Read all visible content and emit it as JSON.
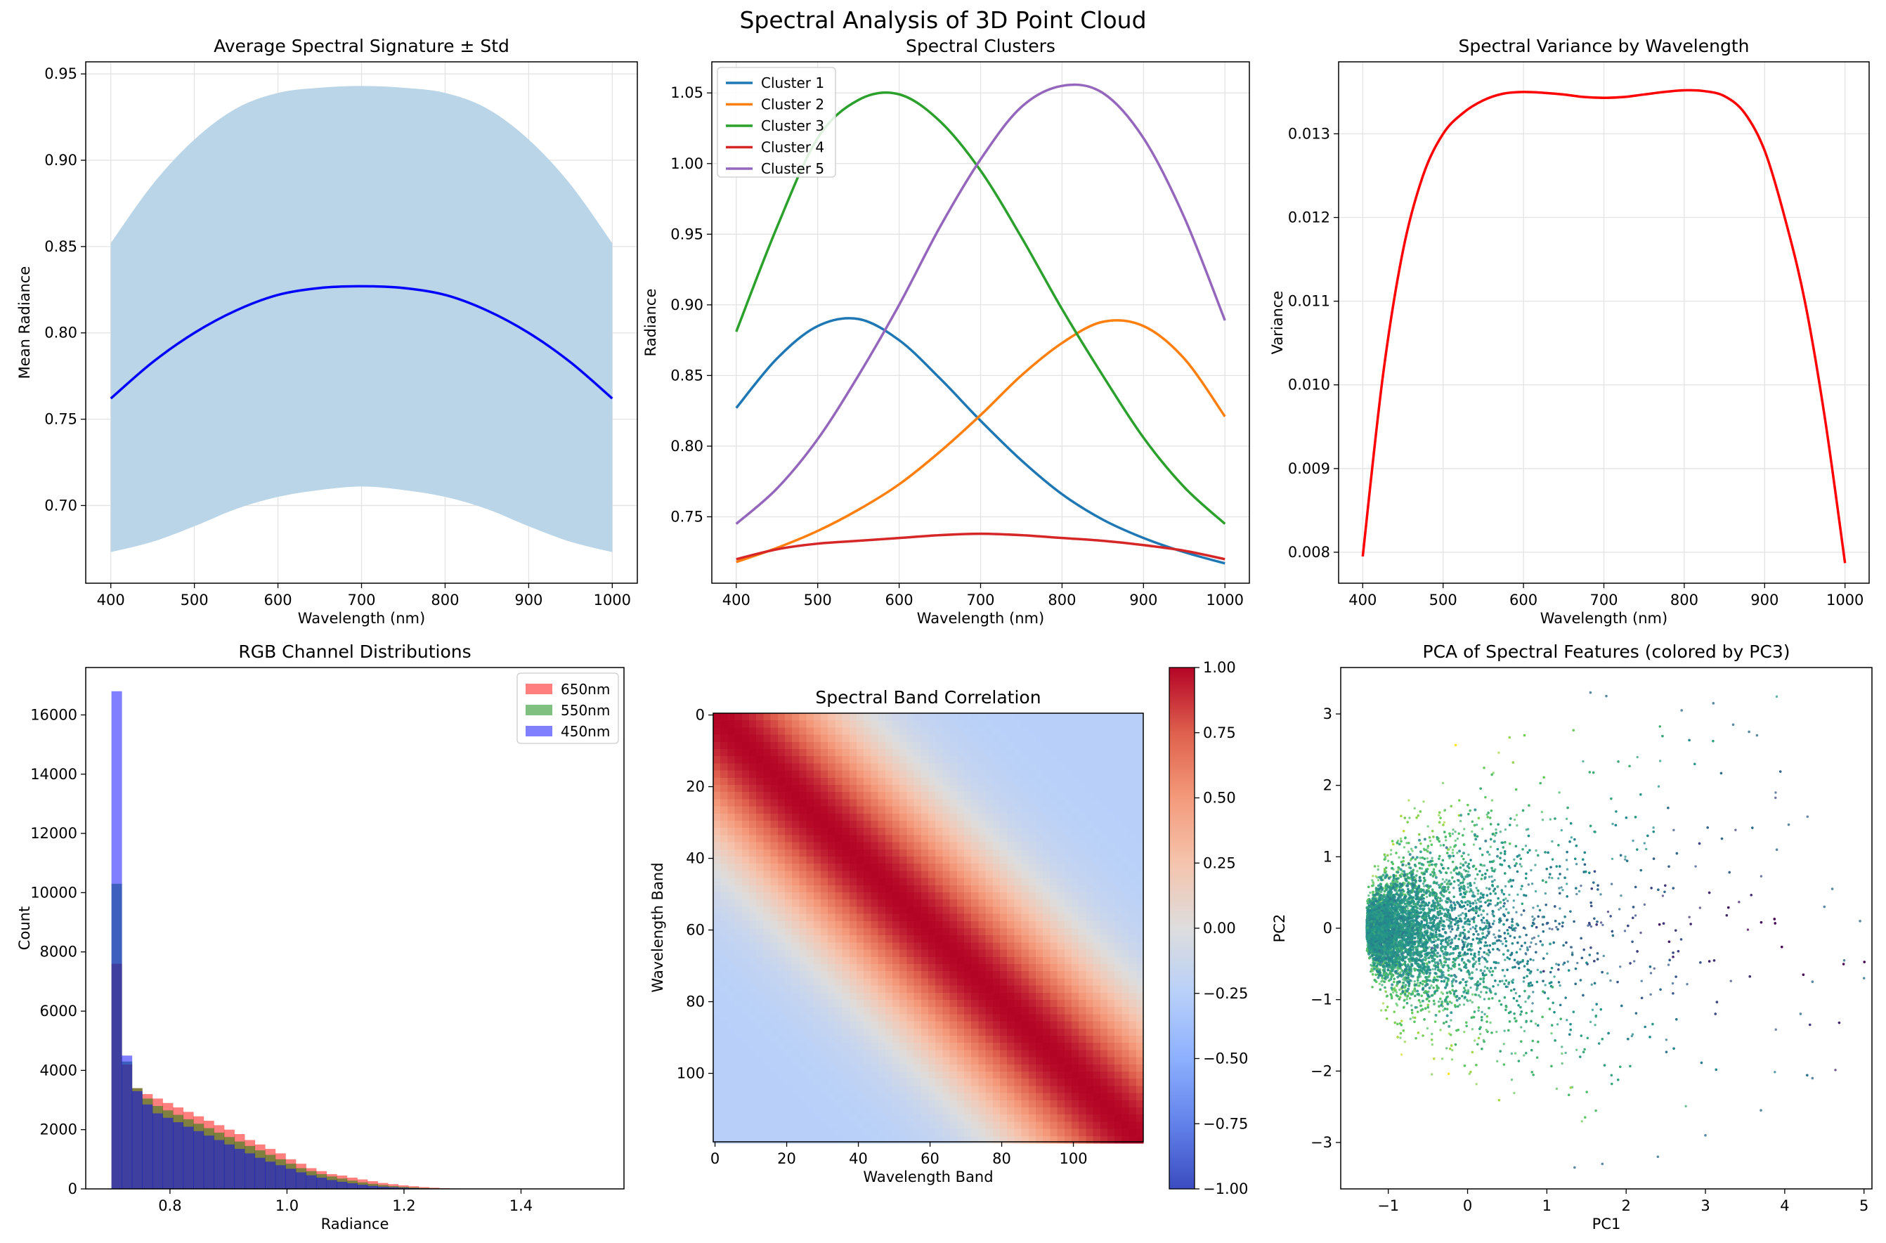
{
  "figure": {
    "title": "Spectral Analysis of 3D Point Cloud"
  },
  "chart_data": [
    {
      "type": "area",
      "id": "avg",
      "title": "Average Spectral Signature ± Std",
      "xlabel": "Wavelength (nm)",
      "ylabel": "Mean Radiance",
      "xlim": [
        370,
        1030
      ],
      "ylim": [
        0.655,
        0.957
      ],
      "xticks": [
        400,
        500,
        600,
        700,
        800,
        900,
        1000
      ],
      "yticks": [
        0.7,
        0.75,
        0.8,
        0.85,
        0.9,
        0.95
      ],
      "ytick_labels": [
        "0.70",
        "0.75",
        "0.80",
        "0.85",
        "0.90",
        "0.95"
      ],
      "grid": true,
      "x": [
        400,
        450,
        500,
        550,
        600,
        650,
        700,
        750,
        800,
        850,
        900,
        950,
        1000
      ],
      "mean": [
        0.762,
        0.783,
        0.8,
        0.813,
        0.822,
        0.826,
        0.827,
        0.826,
        0.822,
        0.813,
        0.8,
        0.783,
        0.762
      ],
      "upper": [
        0.852,
        0.886,
        0.912,
        0.93,
        0.939,
        0.942,
        0.943,
        0.942,
        0.939,
        0.93,
        0.912,
        0.886,
        0.852
      ],
      "lower": [
        0.673,
        0.679,
        0.688,
        0.698,
        0.705,
        0.709,
        0.711,
        0.709,
        0.705,
        0.698,
        0.688,
        0.679,
        0.673
      ],
      "colors": {
        "line": "#0000ff",
        "band": "#b9d5e7"
      }
    },
    {
      "type": "line",
      "id": "clusters",
      "title": "Spectral Clusters",
      "xlabel": "Wavelength (nm)",
      "ylabel": "Radiance",
      "xlim": [
        370,
        1030
      ],
      "ylim": [
        0.703,
        1.072
      ],
      "xticks": [
        400,
        500,
        600,
        700,
        800,
        900,
        1000
      ],
      "yticks": [
        0.75,
        0.8,
        0.85,
        0.9,
        0.95,
        1.0,
        1.05
      ],
      "ytick_labels": [
        "0.75",
        "0.80",
        "0.85",
        "0.90",
        "0.95",
        "1.00",
        "1.05"
      ],
      "grid": true,
      "legend": "top-left",
      "x": [
        400,
        450,
        500,
        550,
        600,
        650,
        700,
        750,
        800,
        850,
        900,
        950,
        1000
      ],
      "series": [
        {
          "name": "Cluster 1",
          "color": "#1f77b4",
          "values": [
            0.827,
            0.862,
            0.885,
            0.89,
            0.875,
            0.848,
            0.818,
            0.79,
            0.766,
            0.748,
            0.735,
            0.725,
            0.717
          ]
        },
        {
          "name": "Cluster 2",
          "color": "#ff7f0e",
          "values": [
            0.718,
            0.728,
            0.74,
            0.755,
            0.773,
            0.796,
            0.822,
            0.85,
            0.873,
            0.888,
            0.885,
            0.862,
            0.821
          ]
        },
        {
          "name": "Cluster 3",
          "color": "#2ca02c",
          "values": [
            0.881,
            0.955,
            1.018,
            1.045,
            1.049,
            1.03,
            0.995,
            0.948,
            0.897,
            0.85,
            0.806,
            0.771,
            0.745
          ]
        },
        {
          "name": "Cluster 4",
          "color": "#d62728",
          "values": [
            0.72,
            0.727,
            0.731,
            0.733,
            0.735,
            0.737,
            0.738,
            0.737,
            0.735,
            0.733,
            0.73,
            0.726,
            0.72
          ]
        },
        {
          "name": "Cluster 5",
          "color": "#9467bd",
          "values": [
            0.745,
            0.77,
            0.805,
            0.85,
            0.9,
            0.955,
            1.003,
            1.04,
            1.055,
            1.05,
            1.018,
            0.962,
            0.889
          ]
        }
      ]
    },
    {
      "type": "line",
      "id": "variance",
      "title": "Spectral Variance by Wavelength",
      "xlabel": "Wavelength (nm)",
      "ylabel": "Variance",
      "xlim": [
        370,
        1030
      ],
      "ylim": [
        0.00763,
        0.01386
      ],
      "xticks": [
        400,
        500,
        600,
        700,
        800,
        900,
        1000
      ],
      "yticks": [
        0.008,
        0.009,
        0.01,
        0.011,
        0.012,
        0.013
      ],
      "ytick_labels": [
        "0.008",
        "0.009",
        "0.010",
        "0.011",
        "0.012",
        "0.013"
      ],
      "grid": true,
      "x": [
        400,
        425,
        450,
        475,
        500,
        525,
        550,
        575,
        600,
        625,
        650,
        675,
        700,
        725,
        750,
        775,
        800,
        825,
        850,
        875,
        900,
        925,
        950,
        975,
        1000
      ],
      "series": [
        {
          "name": "",
          "color": "#ff0000",
          "values": [
            0.00795,
            0.0101,
            0.0116,
            0.0125,
            0.013,
            0.01325,
            0.0134,
            0.01348,
            0.0135,
            0.01349,
            0.01347,
            0.01344,
            0.01343,
            0.01344,
            0.01347,
            0.0135,
            0.01352,
            0.01351,
            0.01345,
            0.01325,
            0.0128,
            0.012,
            0.011,
            0.0096,
            0.00787
          ]
        }
      ]
    },
    {
      "type": "bar",
      "id": "hist",
      "title": "RGB Channel Distributions",
      "xlabel": "Radiance",
      "ylabel": "Count",
      "xlim": [
        0.656,
        1.576
      ],
      "ylim": [
        0,
        17600
      ],
      "xticks": [
        0.8,
        1.0,
        1.2,
        1.4
      ],
      "xtick_labels": [
        "0.8",
        "1.0",
        "1.2",
        "1.4"
      ],
      "yticks": [
        0,
        2000,
        4000,
        6000,
        8000,
        10000,
        12000,
        14000,
        16000
      ],
      "grid": false,
      "legend": "top-right",
      "bin_start": 0.7,
      "bin_width": 0.0175,
      "series": [
        {
          "name": "650nm",
          "color": "#ff0000",
          "values": [
            7600,
            4200,
            3400,
            3200,
            3050,
            2900,
            2750,
            2600,
            2450,
            2300,
            2150,
            2000,
            1850,
            1650,
            1500,
            1350,
            1200,
            1000,
            850,
            700,
            600,
            500,
            450,
            380,
            320,
            260,
            200,
            160,
            120,
            90,
            60,
            40,
            25,
            15,
            10,
            6,
            4,
            2,
            1,
            0,
            0,
            0,
            0,
            0,
            0,
            0,
            0,
            0,
            0,
            0
          ]
        },
        {
          "name": "550nm",
          "color": "#008000",
          "values": [
            10300,
            4300,
            3400,
            3050,
            2800,
            2650,
            2500,
            2350,
            2200,
            2050,
            1900,
            1750,
            1600,
            1450,
            1300,
            1150,
            1000,
            850,
            700,
            600,
            500,
            420,
            350,
            280,
            220,
            170,
            130,
            95,
            70,
            50,
            30,
            20,
            12,
            7,
            4,
            2,
            1,
            1,
            0,
            0,
            0,
            0,
            0,
            0,
            0,
            0,
            0,
            0,
            0,
            0
          ]
        },
        {
          "name": "450nm",
          "color": "#0000ff",
          "values": [
            16800,
            4500,
            3300,
            2850,
            2550,
            2400,
            2250,
            2100,
            1950,
            1800,
            1650,
            1500,
            1350,
            1200,
            1050,
            920,
            800,
            680,
            560,
            460,
            380,
            300,
            240,
            190,
            140,
            100,
            75,
            55,
            38,
            25,
            15,
            9,
            5,
            3,
            2,
            1,
            1,
            0,
            0,
            0,
            0,
            0,
            0,
            0,
            0,
            0,
            0,
            0,
            0,
            0
          ]
        }
      ]
    },
    {
      "type": "heatmap",
      "id": "corr",
      "title": "Spectral Band Correlation",
      "xlabel": "Wavelength Band",
      "ylabel": "Wavelength Band",
      "n": 120,
      "xticks": [
        0,
        20,
        40,
        60,
        80,
        100
      ],
      "yticks": [
        0,
        20,
        40,
        60,
        80,
        100
      ],
      "colorbar_ticks": [
        1.0,
        0.75,
        0.5,
        0.25,
        0.0,
        -0.25,
        -0.5,
        -0.75,
        -1.0
      ],
      "colorbar_labels": [
        "1.00",
        "0.75",
        "0.50",
        "0.25",
        "0.00",
        "−0.25",
        "−0.50",
        "−0.75",
        "−1.00"
      ],
      "vmin": -1,
      "vmax": 1,
      "colormap": "coolwarm"
    },
    {
      "type": "scatter",
      "id": "pca",
      "title": "PCA of Spectral Features (colored by PC3)",
      "xlabel": "PC1",
      "ylabel": "PC2",
      "xlim": [
        -1.6,
        5.1
      ],
      "ylim": [
        -3.65,
        3.65
      ],
      "xticks": [
        -1,
        0,
        1,
        2,
        3,
        4,
        5
      ],
      "xtick_labels": [
        "−1",
        "0",
        "1",
        "2",
        "3",
        "4",
        "5"
      ],
      "yticks": [
        -3,
        -2,
        -1,
        0,
        1,
        2,
        3
      ],
      "ytick_labels": [
        "−3",
        "−2",
        "−1",
        "0",
        "1",
        "2",
        "3"
      ],
      "grid": false,
      "colormap": "viridis",
      "apex": [
        -1.27,
        0
      ],
      "sample_points": [
        [
          4.6,
          0.55
        ],
        [
          4.75,
          -0.45
        ],
        [
          4.95,
          0.1
        ],
        [
          5.0,
          -0.7
        ],
        [
          4.35,
          -0.75
        ],
        [
          4.2,
          -1.2
        ],
        [
          4.05,
          1.45
        ],
        [
          4.35,
          -2.1
        ],
        [
          3.65,
          2.7
        ],
        [
          3.55,
          2.75
        ],
        [
          3.35,
          2.85
        ],
        [
          1.55,
          3.3
        ],
        [
          1.75,
          3.25
        ],
        [
          1.35,
          -3.35
        ],
        [
          1.7,
          -3.3
        ],
        [
          3.1,
          3.15
        ],
        [
          3.9,
          1.1
        ],
        [
          4.5,
          0.3
        ],
        [
          3.7,
          -2.55
        ],
        [
          3.0,
          -2.9
        ],
        [
          2.4,
          -3.2
        ],
        [
          2.7,
          3.05
        ]
      ]
    }
  ]
}
